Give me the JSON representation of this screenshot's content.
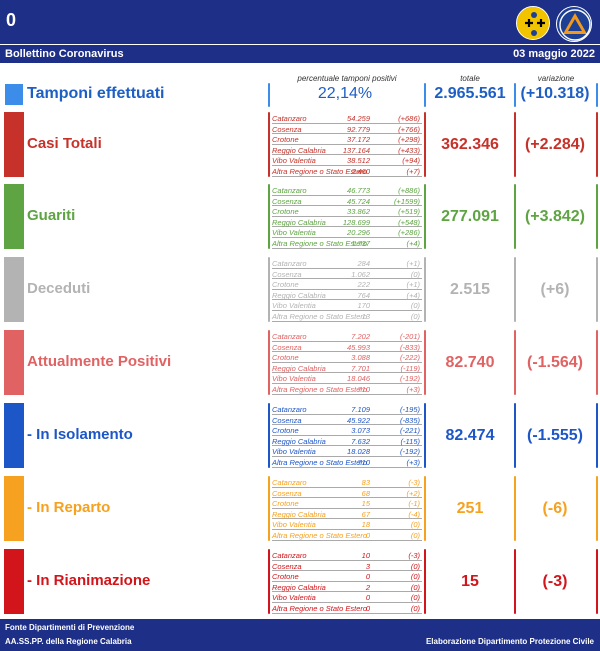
{
  "header": {
    "top_number": "0",
    "title": "Bollettino Coronavirus",
    "date": "03 maggio 2022"
  },
  "columns": {
    "perc": "percentuale tamponi positivi",
    "total": "totale",
    "var": "variazione"
  },
  "tamponi": {
    "title": "Tamponi effettuati",
    "perc": "22,14%",
    "total": "2.965.561",
    "var": "(+10.318)"
  },
  "sections": [
    {
      "id": "casi",
      "title": "Casi Totali",
      "color": "#c6322a",
      "total": "362.346",
      "var": "(+2.284)",
      "rows": [
        {
          "name": "Catanzaro",
          "value": "54.259",
          "delta": "(+686)"
        },
        {
          "name": "Cosenza",
          "value": "92.779",
          "delta": "(+766)"
        },
        {
          "name": "Crotone",
          "value": "37.172",
          "delta": "(+298)"
        },
        {
          "name": "Reggio Calabria",
          "value": "137.164",
          "delta": "(+433)"
        },
        {
          "name": "Vibo Valentia",
          "value": "38.512",
          "delta": "(+94)"
        },
        {
          "name": "Altra Regione o Stato Estero",
          "value": "2.460",
          "delta": "(+7)"
        }
      ]
    },
    {
      "id": "guariti",
      "title": "Guariti",
      "color": "#5ea443",
      "total": "277.091",
      "var": "(+3.842)",
      "rows": [
        {
          "name": "Catanzaro",
          "value": "46.773",
          "delta": "(+886)"
        },
        {
          "name": "Cosenza",
          "value": "45.724",
          "delta": "(+1599)"
        },
        {
          "name": "Crotone",
          "value": "33.862",
          "delta": "(+519)"
        },
        {
          "name": "Reggio Calabria",
          "value": "128.699",
          "delta": "(+548)"
        },
        {
          "name": "Vibo Valentia",
          "value": "20.296",
          "delta": "(+286)"
        },
        {
          "name": "Altra Regione o Stato Estero",
          "value": "1.737",
          "delta": "(+4)"
        }
      ]
    },
    {
      "id": "deceduti",
      "title": "Deceduti",
      "color": "#b3b3b3",
      "total": "2.515",
      "var": "(+6)",
      "rows": [
        {
          "name": "Catanzaro",
          "value": "284",
          "delta": "(+1)"
        },
        {
          "name": "Cosenza",
          "value": "1.062",
          "delta": "(0)"
        },
        {
          "name": "Crotone",
          "value": "222",
          "delta": "(+1)"
        },
        {
          "name": "Reggio Calabria",
          "value": "764",
          "delta": "(+4)"
        },
        {
          "name": "Vibo Valentia",
          "value": "170",
          "delta": "(0)"
        },
        {
          "name": "Altra Regione o Stato Estero",
          "value": "13",
          "delta": "(0)"
        }
      ]
    },
    {
      "id": "positivi",
      "title": "Attualmente Positivi",
      "color": "#e06263",
      "total": "82.740",
      "var": "(-1.564)",
      "rows": [
        {
          "name": "Catanzaro",
          "value": "7.202",
          "delta": "(-201)"
        },
        {
          "name": "Cosenza",
          "value": "45.993",
          "delta": "(-833)"
        },
        {
          "name": "Crotone",
          "value": "3.088",
          "delta": "(-222)"
        },
        {
          "name": "Reggio Calabria",
          "value": "7.701",
          "delta": "(-119)"
        },
        {
          "name": "Vibo Valentia",
          "value": "18.046",
          "delta": "(-192)"
        },
        {
          "name": "Altra Regione o Stato Estero",
          "value": "710",
          "delta": "(+3)"
        }
      ]
    },
    {
      "id": "isolamento",
      "title": " - In Isolamento",
      "color": "#1d56c7",
      "total": "82.474",
      "var": "(-1.555)",
      "rows": [
        {
          "name": "Catanzaro",
          "value": "7.109",
          "delta": "(-195)"
        },
        {
          "name": "Cosenza",
          "value": "45.922",
          "delta": "(-835)"
        },
        {
          "name": "Crotone",
          "value": "3.073",
          "delta": "(-221)"
        },
        {
          "name": "Reggio Calabria",
          "value": "7.632",
          "delta": "(-115)"
        },
        {
          "name": "Vibo Valentia",
          "value": "18.028",
          "delta": "(-192)"
        },
        {
          "name": "Altra Regione o Stato Estero",
          "value": "710",
          "delta": "(+3)"
        }
      ]
    },
    {
      "id": "reparto",
      "title": " - In Reparto",
      "color": "#f6a11f",
      "total": "251",
      "var": "(-6)",
      "rows": [
        {
          "name": "Catanzaro",
          "value": "83",
          "delta": "(-3)"
        },
        {
          "name": "Cosenza",
          "value": "68",
          "delta": "(+2)"
        },
        {
          "name": "Crotone",
          "value": "15",
          "delta": "(-1)"
        },
        {
          "name": "Reggio Calabria",
          "value": "67",
          "delta": "(-4)"
        },
        {
          "name": "Vibo Valentia",
          "value": "18",
          "delta": "(0)"
        },
        {
          "name": "Altra Regione o Stato Estero",
          "value": "0",
          "delta": "(0)"
        }
      ]
    },
    {
      "id": "rianimazione",
      "title": " - In Rianimazione",
      "color": "#d1151a",
      "total": "15",
      "var": "(-3)",
      "rows": [
        {
          "name": "Catanzaro",
          "value": "10",
          "delta": "(-3)"
        },
        {
          "name": "Cosenza",
          "value": "3",
          "delta": "(0)"
        },
        {
          "name": "Crotone",
          "value": "0",
          "delta": "(0)"
        },
        {
          "name": "Reggio Calabria",
          "value": "2",
          "delta": "(0)"
        },
        {
          "name": "Vibo Valentia",
          "value": "0",
          "delta": "(0)"
        },
        {
          "name": "Altra Regione o Stato Estero",
          "value": "0",
          "delta": "(0)"
        }
      ]
    }
  ],
  "footer": {
    "line1": "Fonte Dipartimenti di Prevenzione",
    "line2": "AA.SS.PP.  della Regione Calabria",
    "right": "Elaborazione Dipartimento Protezione Civile"
  }
}
